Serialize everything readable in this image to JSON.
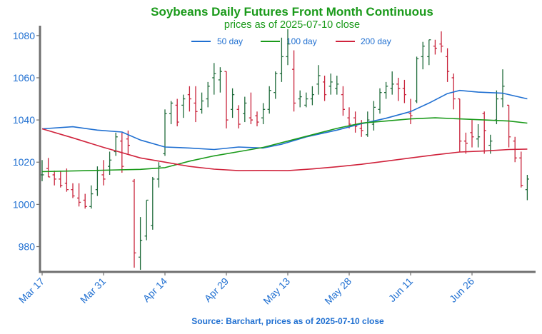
{
  "header": {
    "title": "Soybeans Daily Futures Front Month Continuous",
    "subtitle": "prices as of 2025-07-10 close"
  },
  "footer": {
    "source": "Source: Barchart, prices as of 2025-07-10 close"
  },
  "colors": {
    "up": "#1f6b3a",
    "down": "#c8223a",
    "ma50": "#1f6fd1",
    "ma100": "#1a9a1a",
    "ma200": "#d0233c",
    "axis": "#707070",
    "tick_label": "#1f6fd1"
  },
  "chart_data": {
    "type": "ohlc",
    "title": "Soybeans Daily Futures Front Month Continuous",
    "subtitle": "prices as of 2025-07-10 close",
    "xlabel": "",
    "ylabel": "",
    "ylim": [
      968,
      1084
    ],
    "yticks": [
      980,
      1000,
      1020,
      1040,
      1060,
      1080
    ],
    "xtick_labels": [
      {
        "label": "Mar 17",
        "index": 0
      },
      {
        "label": "Mar 31",
        "index": 10
      },
      {
        "label": "Apr 14",
        "index": 20
      },
      {
        "label": "Apr 29",
        "index": 30
      },
      {
        "label": "May 13",
        "index": 40
      },
      {
        "label": "May 28",
        "index": 50
      },
      {
        "label": "Jun 11",
        "index": 60
      },
      {
        "label": "Jun 26",
        "index": 70
      }
    ],
    "grid": false,
    "legend_position": "top-center",
    "legend": [
      "50 day",
      "100 day",
      "200 day"
    ],
    "ohlc": [
      [
        1014,
        1021,
        1011,
        1014
      ],
      [
        1017,
        1022,
        1013,
        1013
      ],
      [
        1014,
        1016,
        1009,
        1012
      ],
      [
        1012,
        1016,
        1008,
        1009
      ],
      [
        1010,
        1017,
        1006,
        1007
      ],
      [
        1007,
        1010,
        1003,
        1004
      ],
      [
        1003,
        1010,
        999,
        1001
      ],
      [
        1002,
        1005,
        998,
        999
      ],
      [
        999,
        1009,
        998,
        1005
      ],
      [
        1007,
        1018,
        1004,
        1016
      ],
      [
        1014,
        1021,
        1009,
        1012
      ],
      [
        1018,
        1025,
        1014,
        1021
      ],
      [
        1025,
        1034,
        1023,
        1032
      ],
      [
        1030,
        1034,
        1015,
        1018
      ],
      [
        1031,
        1035,
        1024,
        1028
      ],
      [
        1011,
        1012,
        970,
        977
      ],
      [
        975,
        994,
        969,
        983
      ],
      [
        985,
        1002,
        983,
        1002
      ],
      [
        990,
        1013,
        988,
        1012
      ],
      [
        1012,
        1020,
        1008,
        1018
      ],
      [
        1024,
        1045,
        1023,
        1043
      ],
      [
        1043,
        1049,
        1038,
        1048
      ],
      [
        1047,
        1050,
        1037,
        1039
      ],
      [
        1047,
        1052,
        1041,
        1050
      ],
      [
        1052,
        1056,
        1044,
        1050
      ],
      [
        1048,
        1056,
        1039,
        1044
      ],
      [
        1045,
        1053,
        1043,
        1049
      ],
      [
        1050,
        1058,
        1046,
        1056
      ],
      [
        1060,
        1067,
        1052,
        1062
      ],
      [
        1059,
        1065,
        1053,
        1063
      ],
      [
        1063,
        1063,
        1036,
        1040
      ],
      [
        1045,
        1055,
        1041,
        1052
      ],
      [
        1045,
        1047,
        1036,
        1038
      ],
      [
        1043,
        1051,
        1039,
        1048
      ],
      [
        1041,
        1053,
        1038,
        1040
      ],
      [
        1042,
        1044,
        1037,
        1039
      ],
      [
        1041,
        1048,
        1038,
        1045
      ],
      [
        1045,
        1056,
        1043,
        1054
      ],
      [
        1053,
        1063,
        1050,
        1062
      ],
      [
        1062,
        1079,
        1058,
        1070
      ],
      [
        1070,
        1083,
        1066,
        1076
      ],
      [
        1064,
        1073,
        1044,
        1048
      ],
      [
        1050,
        1054,
        1046,
        1051
      ],
      [
        1047,
        1053,
        1046,
        1050
      ],
      [
        1050,
        1056,
        1047,
        1052
      ],
      [
        1057,
        1066,
        1052,
        1061
      ],
      [
        1058,
        1061,
        1049,
        1052
      ],
      [
        1056,
        1062,
        1052,
        1058
      ],
      [
        1055,
        1061,
        1052,
        1057
      ],
      [
        1052,
        1056,
        1042,
        1045
      ],
      [
        1041,
        1046,
        1036,
        1038
      ],
      [
        1041,
        1044,
        1034,
        1037
      ],
      [
        1036,
        1040,
        1032,
        1035
      ],
      [
        1033,
        1044,
        1032,
        1040
      ],
      [
        1038,
        1049,
        1035,
        1046
      ],
      [
        1045,
        1055,
        1043,
        1053
      ],
      [
        1053,
        1058,
        1050,
        1056
      ],
      [
        1055,
        1063,
        1052,
        1057
      ],
      [
        1057,
        1060,
        1049,
        1055
      ],
      [
        1055,
        1059,
        1048,
        1052
      ],
      [
        1043,
        1050,
        1038,
        1042
      ],
      [
        1049,
        1070,
        1048,
        1069
      ],
      [
        1070,
        1077,
        1064,
        1075
      ],
      [
        1070,
        1078,
        1066,
        1078
      ],
      [
        1075,
        1078,
        1071,
        1074
      ],
      [
        1076,
        1082,
        1072,
        1075
      ],
      [
        1070,
        1074,
        1058,
        1063
      ],
      [
        1060,
        1062,
        1045,
        1050
      ],
      [
        1050,
        1050,
        1025,
        1030
      ],
      [
        1030,
        1034,
        1024,
        1029
      ],
      [
        1034,
        1040,
        1027,
        1032
      ],
      [
        1031,
        1038,
        1027,
        1032
      ],
      [
        1043,
        1044,
        1024,
        1035
      ],
      [
        1028,
        1033,
        1024,
        1030
      ],
      [
        1040,
        1054,
        1038,
        1050
      ],
      [
        1050,
        1064,
        1046,
        1056
      ],
      [
        1047,
        1047,
        1027,
        1032
      ],
      [
        1030,
        1032,
        1020,
        1022
      ],
      [
        1022,
        1025,
        1008,
        1009
      ],
      [
        1007,
        1014,
        1002,
        1012
      ]
    ],
    "series": [
      {
        "name": "50 day",
        "values": [
          [
            0,
            1035.8
          ],
          [
            5,
            1036.8
          ],
          [
            9,
            1035.2
          ],
          [
            13,
            1034.3
          ],
          [
            16,
            1030.5
          ],
          [
            20,
            1027.2
          ],
          [
            24,
            1026.7
          ],
          [
            28,
            1026.0
          ],
          [
            32,
            1027.2
          ],
          [
            36,
            1026.7
          ],
          [
            39,
            1028.5
          ],
          [
            43,
            1032.0
          ],
          [
            48,
            1035.2
          ],
          [
            52,
            1038.2
          ],
          [
            56,
            1040.8
          ],
          [
            60,
            1044.0
          ],
          [
            63,
            1048.0
          ],
          [
            66,
            1052.5
          ],
          [
            68,
            1054.0
          ],
          [
            71,
            1053.2
          ],
          [
            75,
            1052.7
          ],
          [
            79,
            1050.0
          ]
        ]
      },
      {
        "name": "100 day",
        "values": [
          [
            0,
            1015.5
          ],
          [
            10,
            1016.2
          ],
          [
            16,
            1016.6
          ],
          [
            20,
            1017.4
          ],
          [
            24,
            1020.5
          ],
          [
            28,
            1023.0
          ],
          [
            32,
            1025.0
          ],
          [
            36,
            1027.0
          ],
          [
            40,
            1030.0
          ],
          [
            44,
            1033.0
          ],
          [
            48,
            1036.0
          ],
          [
            52,
            1038.5
          ],
          [
            56,
            1039.5
          ],
          [
            60,
            1040.5
          ],
          [
            64,
            1041.0
          ],
          [
            68,
            1040.5
          ],
          [
            72,
            1040.0
          ],
          [
            76,
            1039.5
          ],
          [
            79,
            1038.5
          ]
        ]
      },
      {
        "name": "200 day",
        "values": [
          [
            0,
            1035.8
          ],
          [
            5,
            1031.5
          ],
          [
            10,
            1027.0
          ],
          [
            16,
            1022.0
          ],
          [
            20,
            1020.0
          ],
          [
            24,
            1018.0
          ],
          [
            28,
            1016.7
          ],
          [
            32,
            1016.0
          ],
          [
            36,
            1016.1
          ],
          [
            40,
            1016.0
          ],
          [
            44,
            1016.8
          ],
          [
            48,
            1017.8
          ],
          [
            52,
            1019.0
          ],
          [
            56,
            1020.5
          ],
          [
            60,
            1022.0
          ],
          [
            64,
            1023.5
          ],
          [
            68,
            1024.8
          ],
          [
            72,
            1025.3
          ],
          [
            76,
            1026.0
          ],
          [
            79,
            1026.2
          ]
        ]
      }
    ]
  }
}
